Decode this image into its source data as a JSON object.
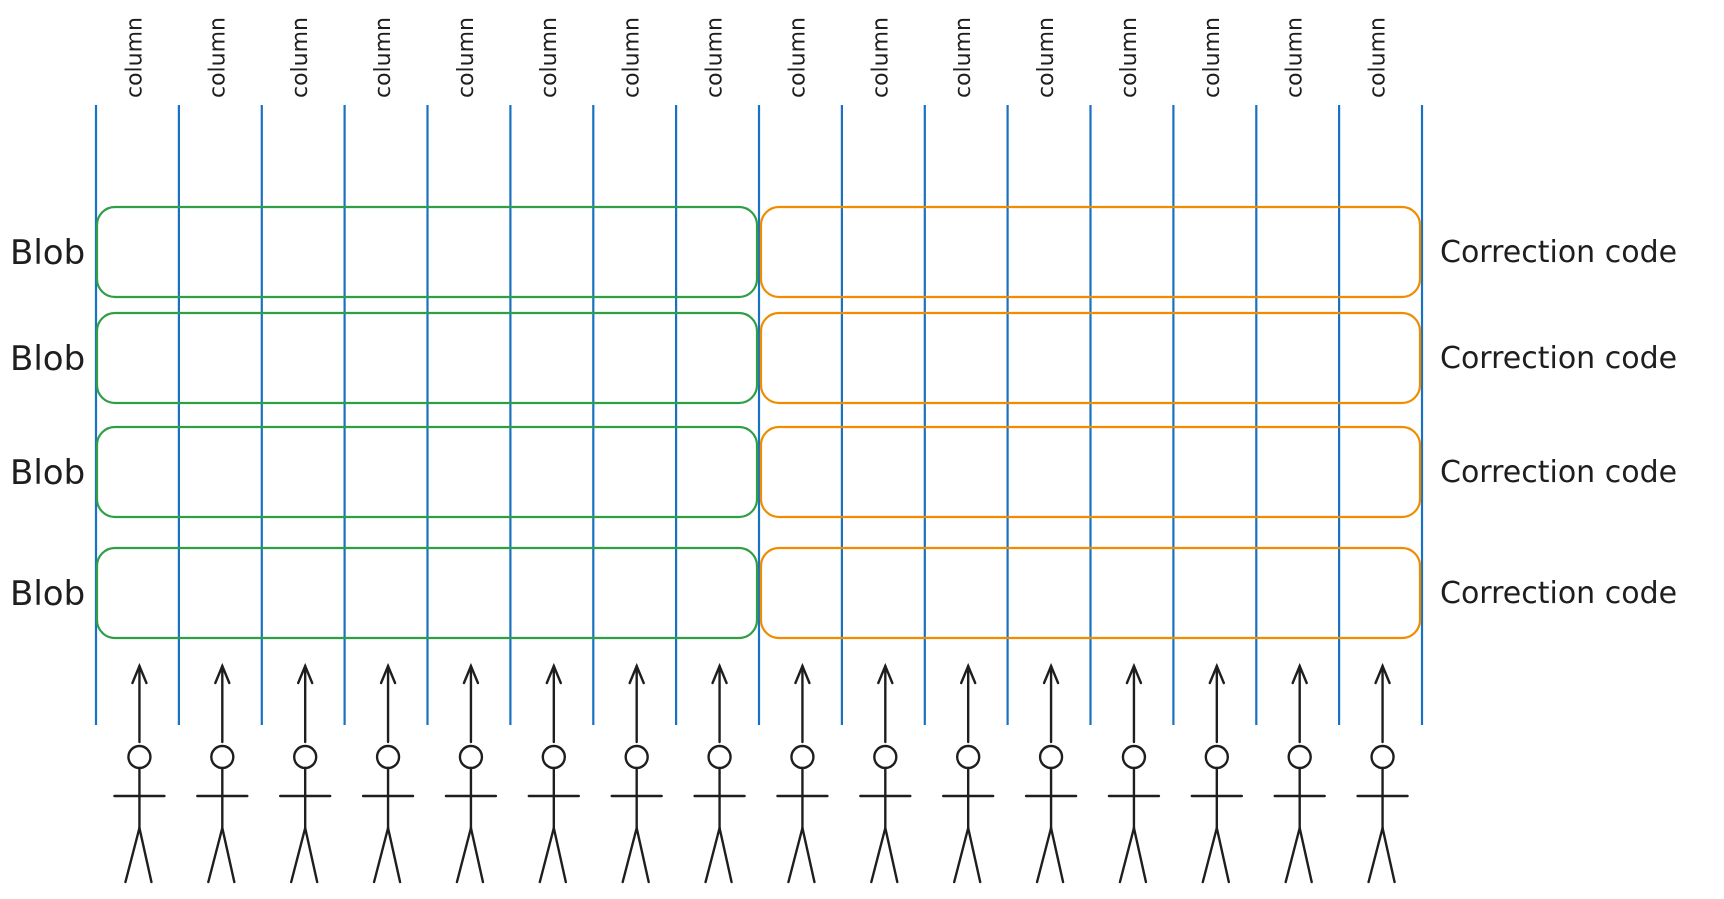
{
  "columns": [
    {
      "label": "column"
    },
    {
      "label": "column"
    },
    {
      "label": "column"
    },
    {
      "label": "column"
    },
    {
      "label": "column"
    },
    {
      "label": "column"
    },
    {
      "label": "column"
    },
    {
      "label": "column"
    },
    {
      "label": "column"
    },
    {
      "label": "column"
    },
    {
      "label": "column"
    },
    {
      "label": "column"
    },
    {
      "label": "column"
    },
    {
      "label": "column"
    },
    {
      "label": "column"
    },
    {
      "label": "column"
    }
  ],
  "rows": [
    {
      "blob_label": "Blob",
      "code_label": "Correction code"
    },
    {
      "blob_label": "Blob",
      "code_label": "Correction code"
    },
    {
      "blob_label": "Blob",
      "code_label": "Correction code"
    },
    {
      "blob_label": "Blob",
      "code_label": "Correction code"
    }
  ],
  "people_count": 16,
  "colors": {
    "column_line": "#1971c2",
    "blob_box": "#2f9e44",
    "code_box": "#f08c00",
    "ink": "#1e1e1e"
  }
}
